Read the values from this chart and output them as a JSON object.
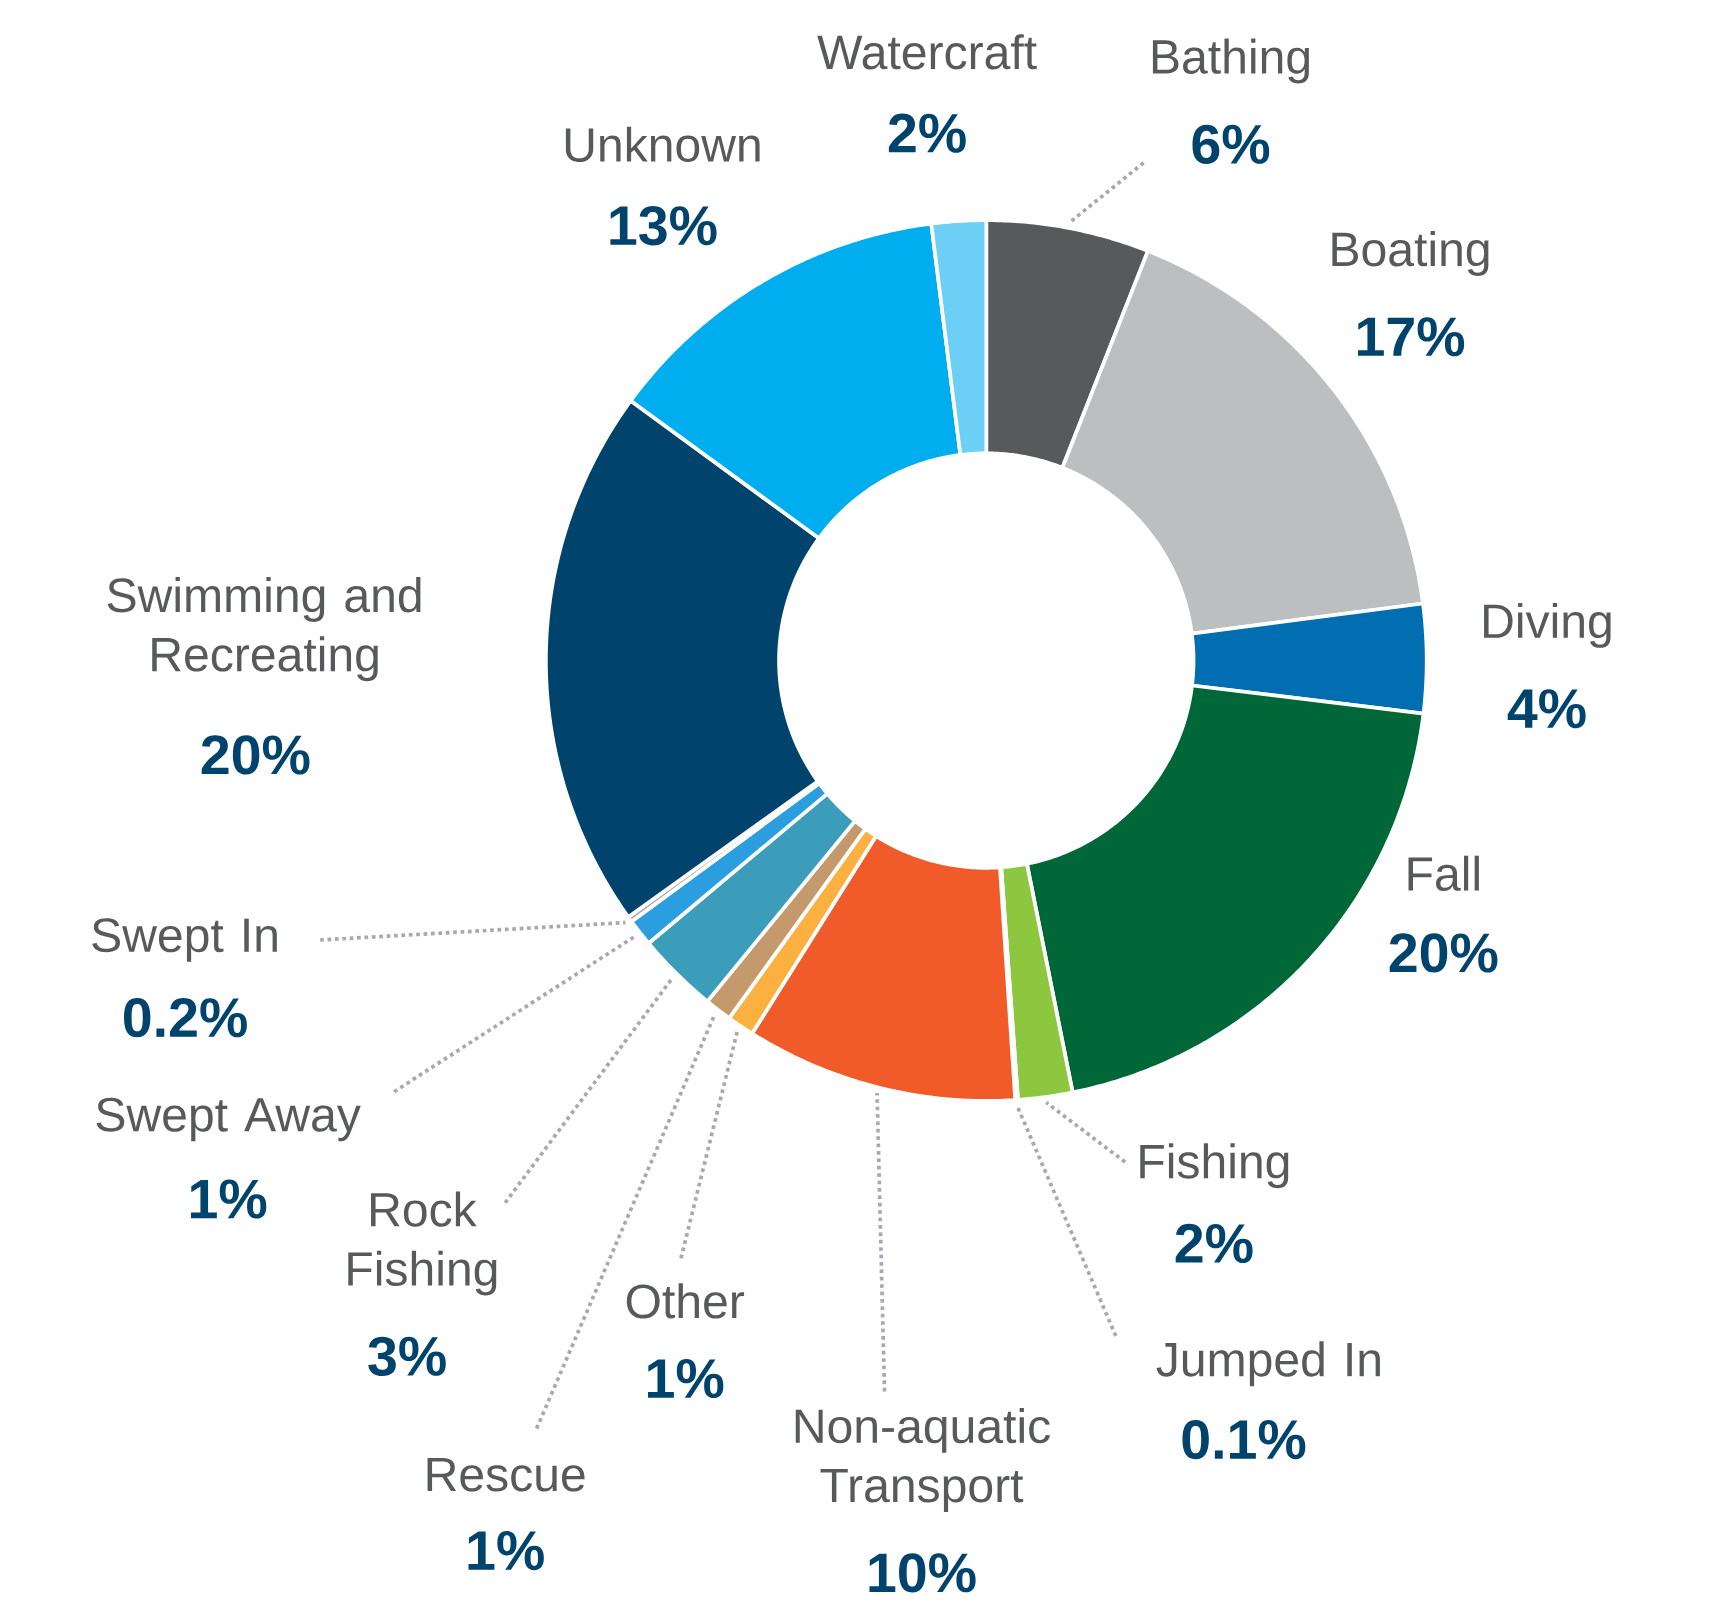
{
  "chart_data": {
    "type": "donut",
    "categories": [
      "Bathing",
      "Boating",
      "Diving",
      "Fall",
      "Fishing",
      "Jumped In",
      "Non-aquatic Transport",
      "Other",
      "Rescue",
      "Rock Fishing",
      "Swept Away",
      "Swept In",
      "Swimming and Recreating",
      "Unknown",
      "Watercraft"
    ],
    "values": [
      6,
      17,
      4,
      20,
      2,
      0.1,
      10,
      1,
      1,
      3,
      1,
      0.2,
      20,
      13,
      2
    ],
    "value_labels": [
      "6%",
      "17%",
      "4%",
      "20%",
      "2%",
      "0.1%",
      "10%",
      "1%",
      "1%",
      "3%",
      "1%",
      "0.2%",
      "20%",
      "13%",
      "2%"
    ],
    "colors": [
      "#58595b",
      "#bcbec0",
      "#006eb0",
      "#006838",
      "#8dc63f",
      "#e6e7e8",
      "#f15a29",
      "#fbb040",
      "#c49a6c",
      "#3c9dba",
      "#2b9ee0",
      "#a7a9ac",
      "#00446e",
      "#00adee",
      "#6dcff6"
    ]
  }
}
